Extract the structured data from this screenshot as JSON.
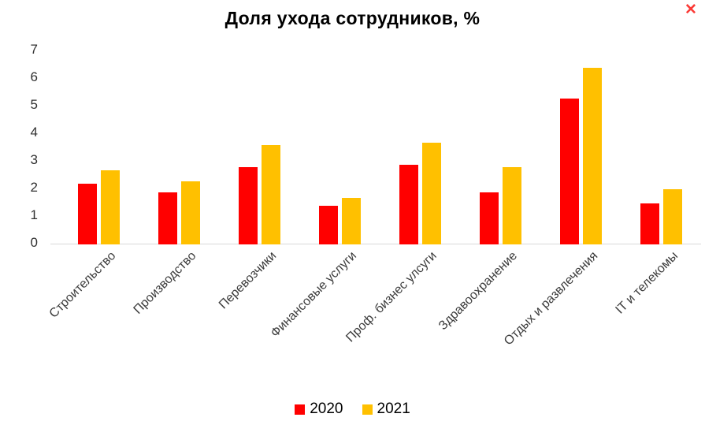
{
  "chart_data": {
    "type": "bar",
    "title": "Доля ухода сотрудников, %",
    "categories": [
      "Строительство",
      "Производство",
      "Перевозчики",
      "Финансовые услуги",
      "Проф. бизнес улсуги",
      "Здравоохранение",
      "Отдых и развлечения",
      "IT и телекомы"
    ],
    "series": [
      {
        "name": "2020",
        "color": "#FF0000",
        "values": [
          2.2,
          1.9,
          2.8,
          1.4,
          2.9,
          1.9,
          5.3,
          1.5
        ]
      },
      {
        "name": "2021",
        "color": "#FFC000",
        "values": [
          2.7,
          2.3,
          3.6,
          1.7,
          3.7,
          2.8,
          6.4,
          2.0
        ]
      }
    ],
    "ylim": [
      0,
      7
    ],
    "yticks": [
      0,
      1,
      2,
      3,
      4,
      5,
      6,
      7
    ],
    "xlabel": "",
    "ylabel": "",
    "grid": false,
    "legend_position": "bottom",
    "axis_line_color": "#d9d9d9"
  },
  "window": {
    "close_label": "✕",
    "close_color": "#fb3a36"
  }
}
